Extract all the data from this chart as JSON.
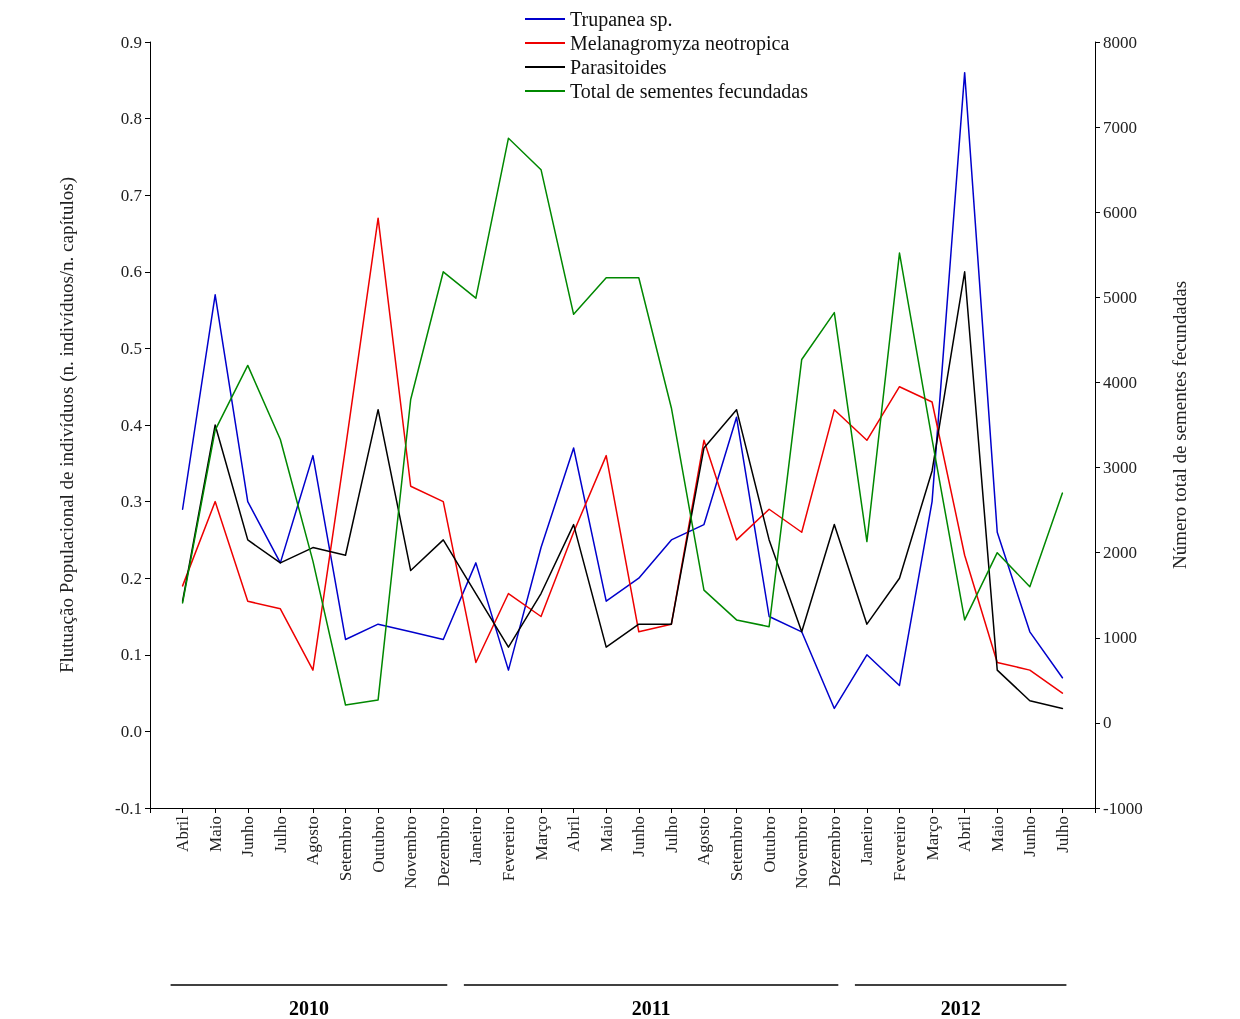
{
  "chart_data": {
    "type": "line",
    "xlabel": null,
    "ylabel": "Flutuação Populacional de indivíduos (n. indivíduos/n. capítulos)",
    "y2label": "Número total de sementes fecundadas",
    "categories": [
      "Abril",
      "Maio",
      "Junho",
      "Julho",
      "Agosto",
      "Setembro",
      "Outubro",
      "Novembro",
      "Dezembro",
      "Janeiro",
      "Fevereiro",
      "Março",
      "Abril",
      "Maio",
      "Junho",
      "Julho",
      "Agosto",
      "Setembro",
      "Outubro",
      "Novembro",
      "Dezembro",
      "Janeiro",
      "Fevereiro",
      "Março",
      "Abril",
      "Maio",
      "Junho",
      "Julho"
    ],
    "series": [
      {
        "name": "Trupanea sp.",
        "color": "#0000cc",
        "values": [
          0.29,
          0.57,
          0.3,
          0.22,
          0.36,
          0.12,
          0.14,
          0.13,
          0.12,
          0.22,
          0.08,
          0.24,
          0.37,
          0.17,
          0.2,
          0.25,
          0.27,
          0.41,
          0.15,
          0.13,
          0.03,
          0.1,
          0.06,
          0.3,
          0.86,
          0.26,
          0.13,
          0.07
        ]
      },
      {
        "name": "Melanagromyza neotropica",
        "color": "#ee0000",
        "values": [
          0.19,
          0.3,
          0.17,
          0.16,
          0.08,
          0.37,
          0.67,
          0.32,
          0.3,
          0.09,
          0.18,
          0.15,
          0.26,
          0.36,
          0.13,
          0.14,
          0.38,
          0.25,
          0.29,
          0.26,
          0.42,
          0.38,
          0.45,
          0.43,
          0.23,
          0.09,
          0.08,
          0.05
        ]
      },
      {
        "name": "Parasitoides",
        "color": "#000000",
        "values": [
          0.17,
          0.4,
          0.25,
          0.22,
          0.24,
          0.23,
          0.42,
          0.21,
          0.25,
          0.18,
          0.11,
          0.18,
          0.27,
          0.11,
          0.14,
          0.14,
          0.37,
          0.42,
          0.25,
          0.13,
          0.27,
          0.14,
          0.2,
          0.34,
          0.6,
          0.08,
          0.04,
          0.03
        ]
      },
      {
        "name": "Total de sementes fecundadas",
        "color": "#008800",
        "axis": "y2",
        "values": [
          1410,
          3440,
          4200,
          3330,
          1900,
          210,
          270,
          3800,
          5300,
          4990,
          6870,
          6500,
          4800,
          5230,
          5230,
          3700,
          1560,
          1210,
          1130,
          4270,
          4820,
          2130,
          5520,
          3330,
          1210,
          2000,
          1600,
          2700
        ]
      }
    ],
    "ylim": [
      -0.1,
      0.9
    ],
    "yticks": [
      -0.1,
      {
        "value": 0,
        "label": "0.0"
      },
      0.1,
      0.2,
      0.3,
      0.4,
      0.5,
      0.6,
      0.7,
      0.8,
      0.9
    ],
    "y2lim": [
      -1000,
      8000
    ],
    "y2ticks": [
      -1000,
      0,
      1000,
      2000,
      3000,
      4000,
      5000,
      6000,
      7000,
      8000
    ],
    "grid": false,
    "legend": "top",
    "marker": "none",
    "line_style": "solid",
    "annotations": [
      "2010",
      "2011",
      "2012"
    ]
  }
}
